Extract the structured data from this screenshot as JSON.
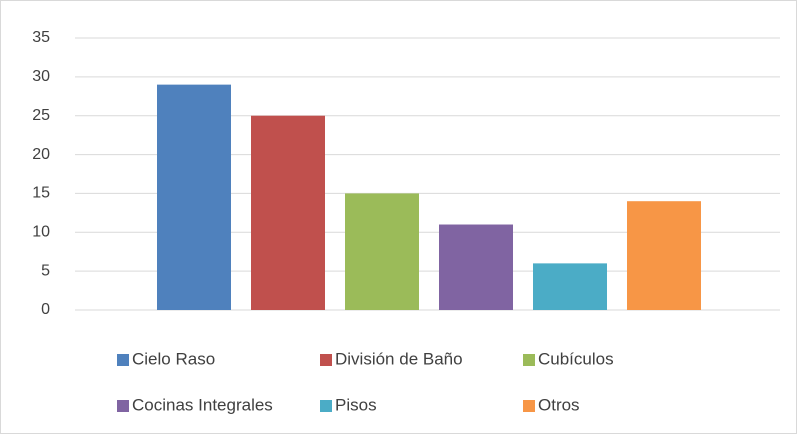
{
  "chart_data": {
    "type": "bar",
    "categories": [
      "Cielo Raso",
      "División de Baño",
      "Cubículos",
      "Cocinas Integrales",
      "Pisos",
      "Otros"
    ],
    "values": [
      29,
      25,
      15,
      11,
      6,
      14
    ],
    "colors": [
      "#4f81bd",
      "#c0504d",
      "#9bbb59",
      "#8064a2",
      "#4bacc6",
      "#f79646"
    ],
    "ylim": [
      0,
      35
    ],
    "yticks": [
      0,
      5,
      10,
      15,
      20,
      25,
      30,
      35
    ],
    "grid": true,
    "legend": "bottom"
  }
}
